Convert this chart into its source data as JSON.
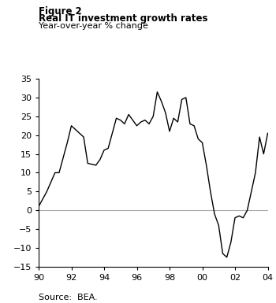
{
  "title_line1": "Figure 2",
  "title_line2": "Real IT investment growth rates",
  "subtitle": "Year-over-year % change",
  "source": "Source:  BEA.",
  "xlim": [
    1990,
    2004
  ],
  "ylim": [
    -15,
    35
  ],
  "yticks": [
    -15,
    -10,
    -5,
    0,
    5,
    10,
    15,
    20,
    25,
    30,
    35
  ],
  "xtick_positions": [
    1990,
    1992,
    1994,
    1996,
    1998,
    2000,
    2002,
    2004
  ],
  "xtick_labels": [
    "90",
    "92",
    "94",
    "96",
    "98",
    "00",
    "02",
    "04"
  ],
  "line_color": "#000000",
  "background_color": "#ffffff",
  "zero_line_color": "#aaaaaa",
  "x": [
    1990,
    1990.5,
    1991,
    1991.25,
    1991.5,
    1991.75,
    1992.0,
    1992.25,
    1992.75,
    1993.0,
    1993.5,
    1993.75,
    1994.0,
    1994.25,
    1994.5,
    1994.75,
    1995.0,
    1995.25,
    1995.5,
    1995.75,
    1996.0,
    1996.25,
    1996.5,
    1996.75,
    1997.0,
    1997.25,
    1997.5,
    1997.75,
    1998.0,
    1998.25,
    1998.5,
    1998.75,
    1999.0,
    1999.25,
    1999.5,
    1999.75,
    2000.0,
    2000.25,
    2000.5,
    2000.75,
    2001.0,
    2001.25,
    2001.5,
    2001.75,
    2002.0,
    2002.25,
    2002.5,
    2002.75,
    2003.0,
    2003.25,
    2003.5,
    2003.75,
    2004.0
  ],
  "y": [
    1.0,
    5.0,
    10.0,
    10.0,
    14.0,
    18.0,
    22.5,
    21.5,
    19.5,
    12.5,
    12.0,
    13.5,
    16.0,
    16.5,
    20.5,
    24.5,
    24.0,
    23.0,
    25.5,
    24.0,
    22.5,
    23.5,
    24.0,
    23.0,
    25.0,
    31.5,
    29.0,
    26.0,
    21.0,
    24.5,
    23.5,
    29.5,
    30.0,
    23.0,
    22.5,
    19.0,
    18.0,
    12.0,
    5.0,
    -1.0,
    -4.0,
    -11.5,
    -12.5,
    -8.5,
    -2.0,
    -1.5,
    -2.0,
    0.0,
    5.0,
    10.0,
    19.5,
    15.0,
    20.5
  ]
}
